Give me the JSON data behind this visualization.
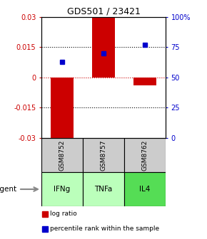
{
  "title": "GDS501 / 23421",
  "samples": [
    "GSM8752",
    "GSM8757",
    "GSM8762"
  ],
  "agents": [
    "IFNg",
    "TNFa",
    "IL4"
  ],
  "log_ratios": [
    -0.031,
    0.031,
    -0.004
  ],
  "percentile_ranks": [
    0.63,
    0.7,
    0.77
  ],
  "bar_color": "#cc0000",
  "dot_color": "#0000cc",
  "ylim": [
    -0.03,
    0.03
  ],
  "yticks_left": [
    -0.03,
    -0.015,
    0,
    0.015,
    0.03
  ],
  "yticks_right": [
    0,
    25,
    50,
    75,
    100
  ],
  "hline_y": [
    -0.015,
    0.015
  ],
  "agent_colors": [
    "#bbffbb",
    "#bbffbb",
    "#55dd55"
  ],
  "gsm_color": "#cccccc",
  "legend_log_ratio": "log ratio",
  "legend_percentile": "percentile rank within the sample"
}
